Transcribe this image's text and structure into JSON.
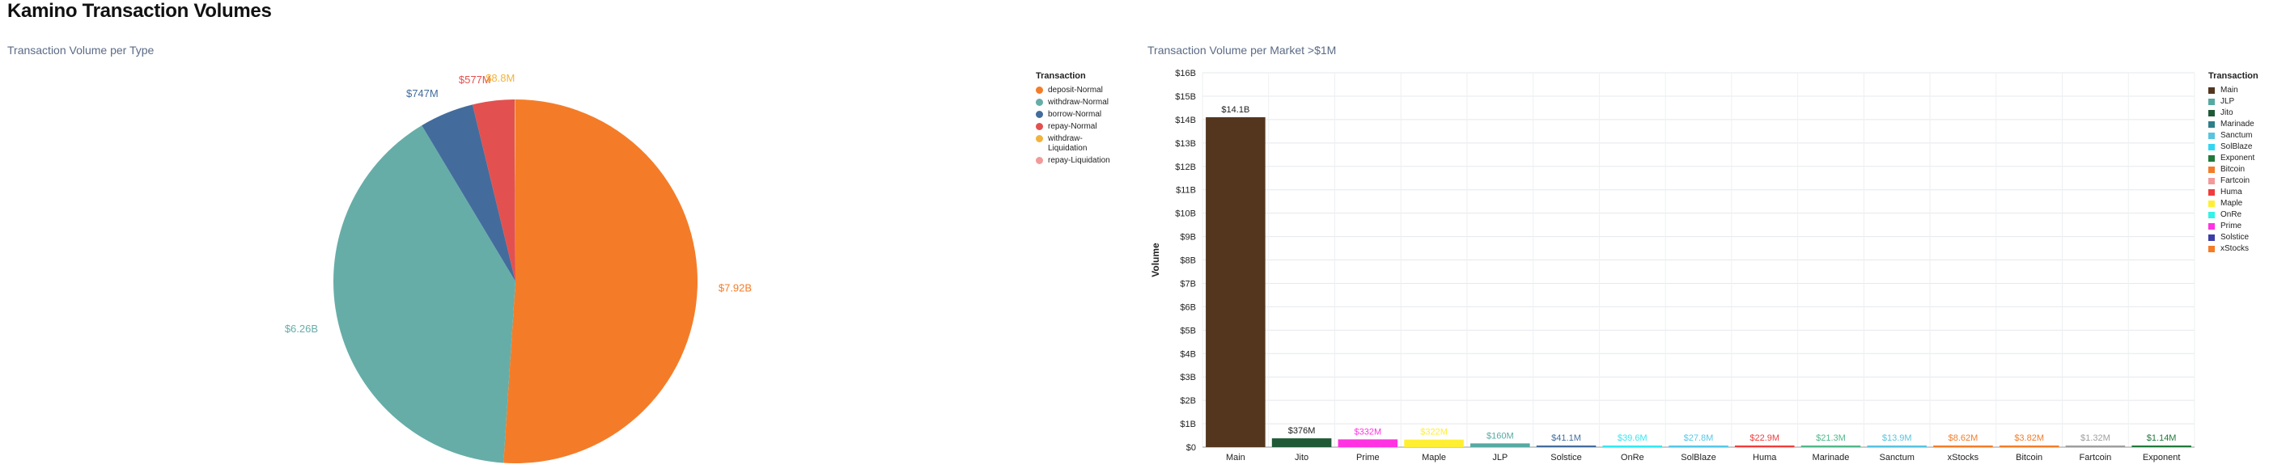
{
  "page": {
    "title": "Kamino Transaction Volumes"
  },
  "chart_data": [
    {
      "type": "pie",
      "title": "Transaction Volume per Type",
      "legend_title": "Transaction",
      "legend_position": "right",
      "slices": [
        {
          "label": "deposit-Normal",
          "value": 7.92,
          "value_label": "$7.92B",
          "color": "#f47c28"
        },
        {
          "label": "withdraw-Normal",
          "value": 6.26,
          "value_label": "$6.26B",
          "color": "#66ada8"
        },
        {
          "label": "borrow-Normal",
          "value": 0.747,
          "value_label": "$747M",
          "color": "#436c9c"
        },
        {
          "label": "repay-Normal",
          "value": 0.577,
          "value_label": "$577M",
          "color": "#e2514f"
        },
        {
          "label": "withdraw-Liquidation",
          "value": 0.0088,
          "value_label": "$8.8M",
          "color": "#f2b33d"
        },
        {
          "label": "repay-Liquidation",
          "value": 0.002,
          "value_label": "",
          "color": "#f29a9a"
        }
      ]
    },
    {
      "type": "bar",
      "title": "Transaction Volume per Market >$1M",
      "ylabel": "Volume",
      "xlabel": "",
      "ylim": [
        0,
        16
      ],
      "y_unit": "billions USD",
      "y_ticks": [
        "$0",
        "$1B",
        "$2B",
        "$3B",
        "$4B",
        "$5B",
        "$6B",
        "$7B",
        "$8B",
        "$9B",
        "$10B",
        "$11B",
        "$12B",
        "$13B",
        "$14B",
        "$15B",
        "$16B"
      ],
      "grid": true,
      "legend_title": "Transaction",
      "legend_position": "right",
      "categories": [
        "Main",
        "Jito",
        "Prime",
        "Maple",
        "JLP",
        "Solstice",
        "OnRe",
        "SolBlaze",
        "Huma",
        "Marinade",
        "Sanctum",
        "xStocks",
        "Bitcoin",
        "Fartcoin",
        "Exponent"
      ],
      "values": [
        14.1,
        0.376,
        0.332,
        0.322,
        0.16,
        0.0411,
        0.0396,
        0.0278,
        0.0229,
        0.0213,
        0.0139,
        0.00862,
        0.00382,
        0.00132,
        0.00114
      ],
      "value_labels": [
        "$14.1B",
        "$376M",
        "$332M",
        "$322M",
        "$160M",
        "$41.1M",
        "$39.6M",
        "$27.8M",
        "$22.9M",
        "$21.3M",
        "$13.9M",
        "$8.62M",
        "$3.82M",
        "$1.32M",
        "$1.14M"
      ],
      "colors": [
        "#54361f",
        "#1f5a37",
        "#ff33e1",
        "#ffef33",
        "#55aaa2",
        "#436c9c",
        "#33e8f2",
        "#55c8e8",
        "#f03c3c",
        "#4fb88a",
        "#58c4e0",
        "#f47c28",
        "#f47c28",
        "#9e9e9e",
        "#1f7a3a"
      ],
      "legend": [
        {
          "label": "Main",
          "color": "#54361f"
        },
        {
          "label": "JLP",
          "color": "#55aaa2"
        },
        {
          "label": "Jito",
          "color": "#1f5a37"
        },
        {
          "label": "Marinade",
          "color": "#2f7f8a"
        },
        {
          "label": "Sanctum",
          "color": "#58c4e0"
        },
        {
          "label": "SolBlaze",
          "color": "#33d6f2"
        },
        {
          "label": "Exponent",
          "color": "#1f7a3a"
        },
        {
          "label": "Bitcoin",
          "color": "#f47c28"
        },
        {
          "label": "Fartcoin",
          "color": "#f29a9a"
        },
        {
          "label": "Huma",
          "color": "#f03c3c"
        },
        {
          "label": "Maple",
          "color": "#ffef33"
        },
        {
          "label": "OnRe",
          "color": "#33f2e8"
        },
        {
          "label": "Prime",
          "color": "#ff33e1"
        },
        {
          "label": "Solstice",
          "color": "#3d3da8"
        },
        {
          "label": "xStocks",
          "color": "#f47c28"
        }
      ]
    }
  ]
}
